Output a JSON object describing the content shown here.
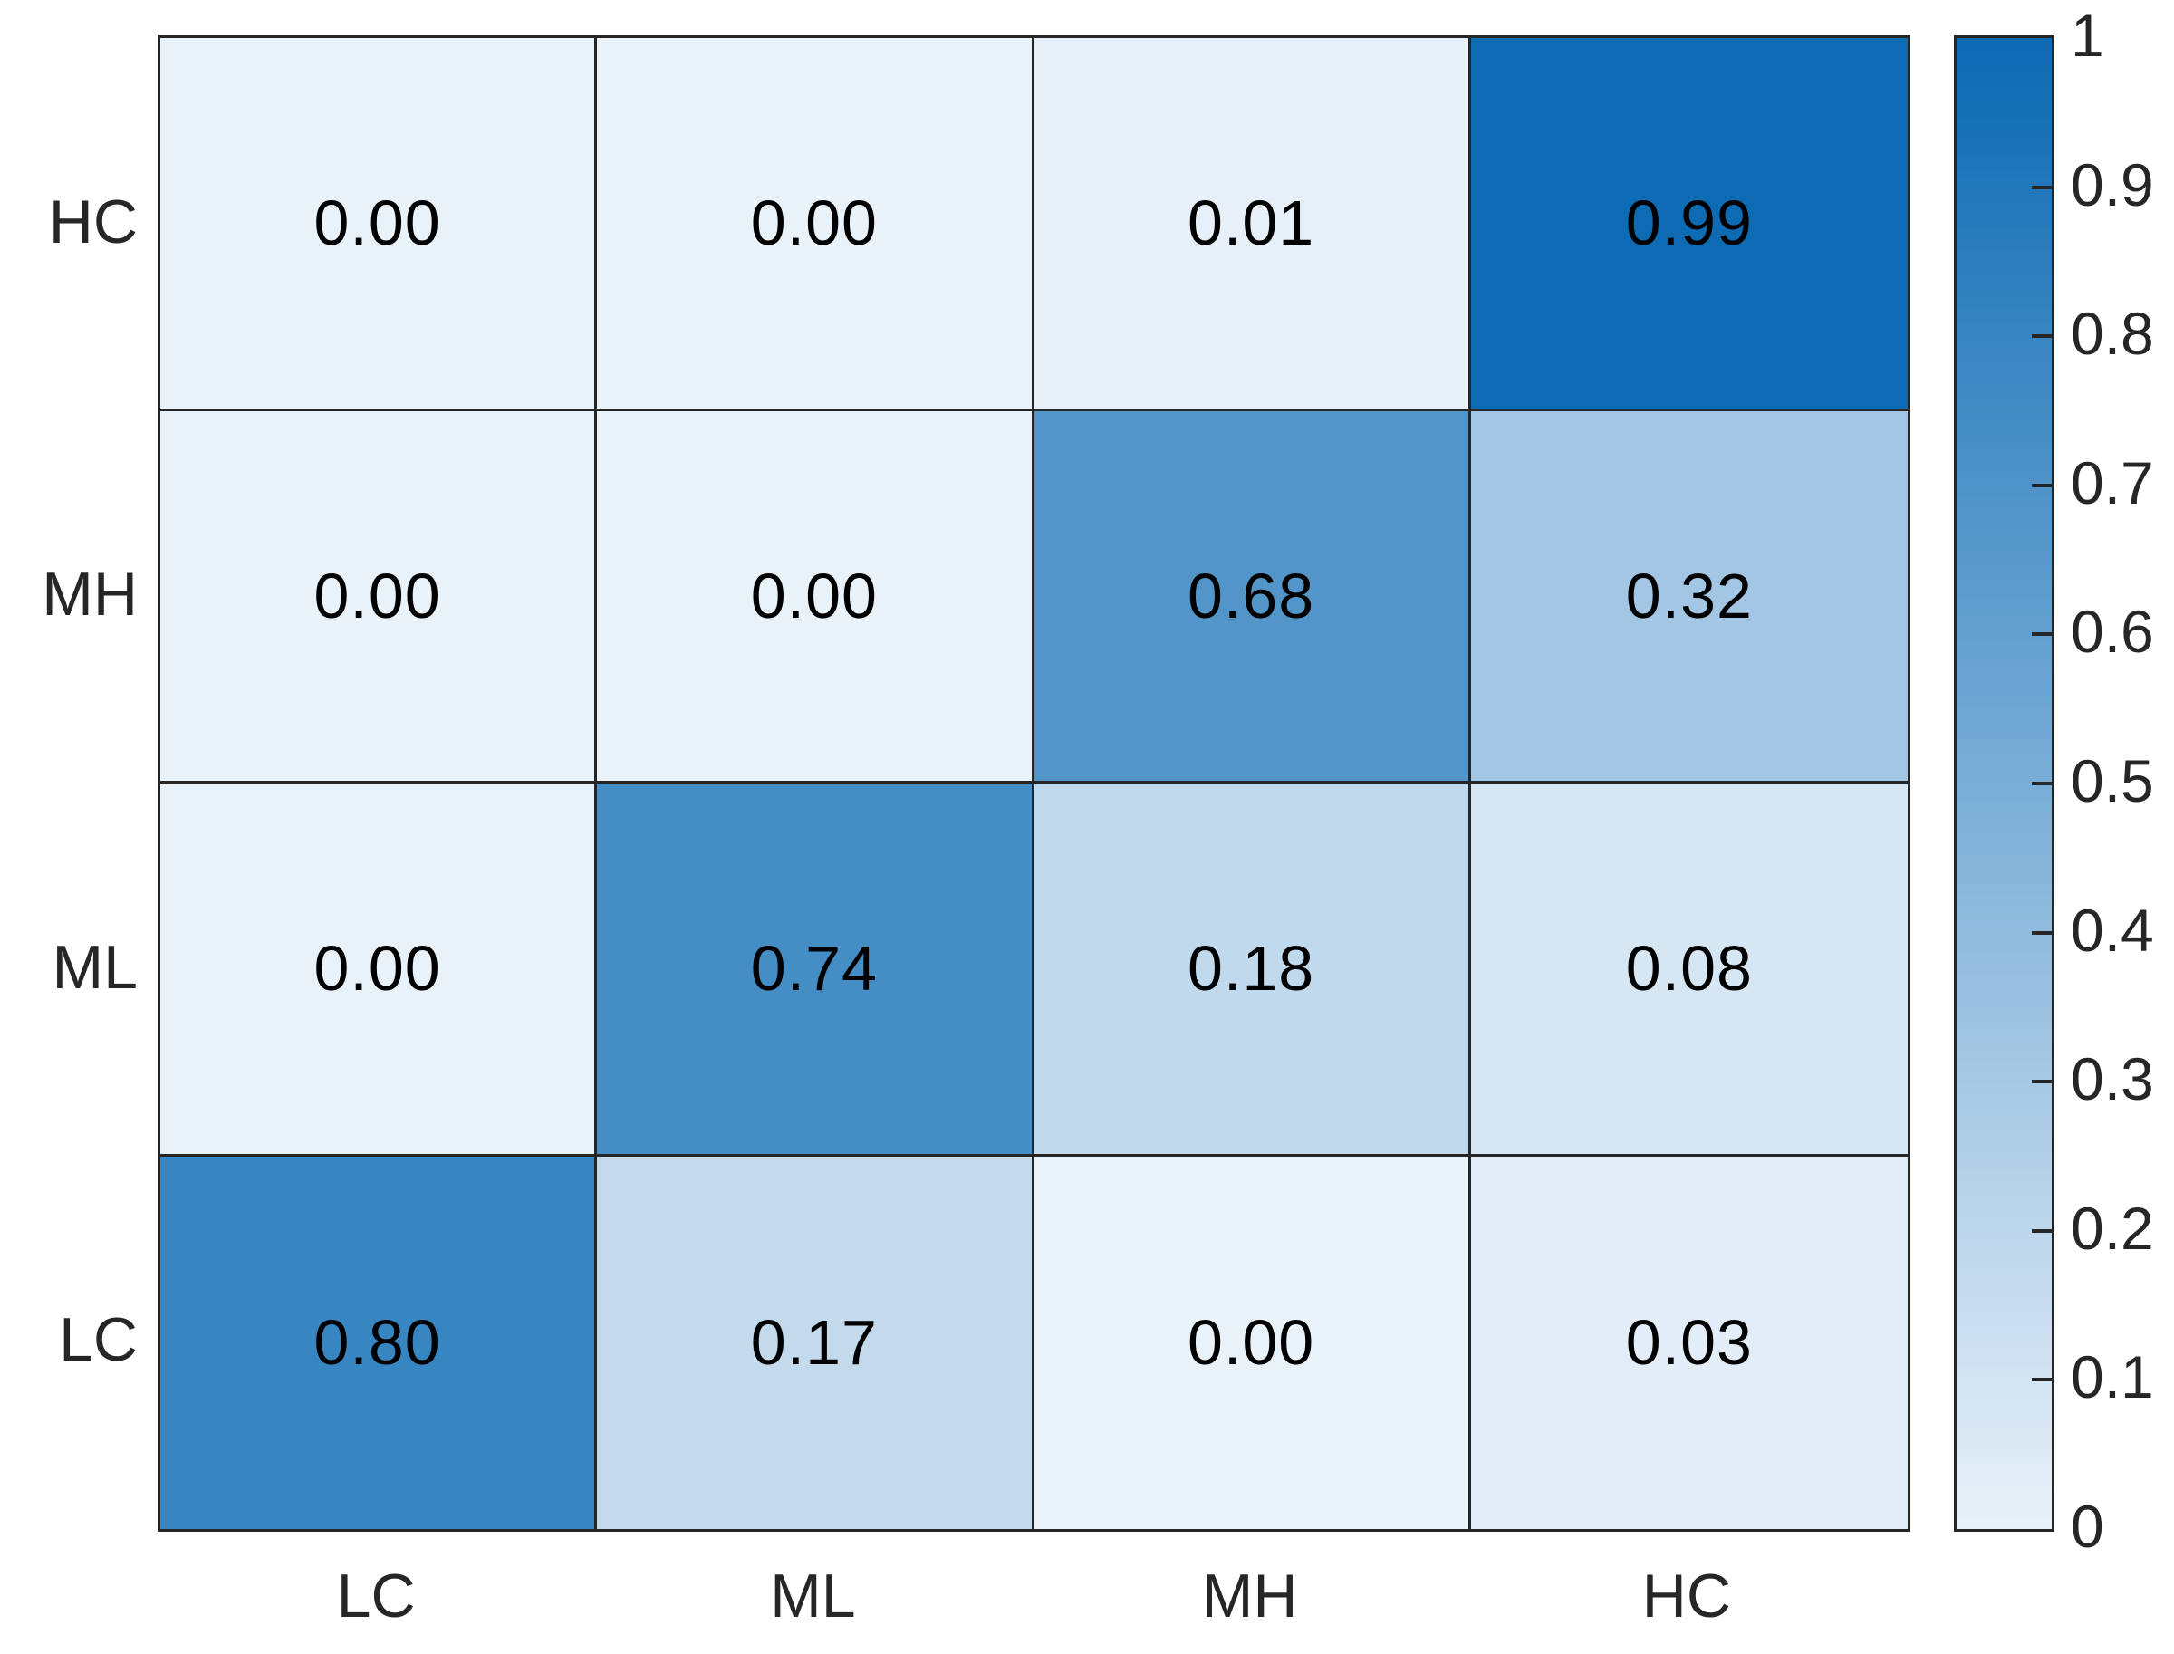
{
  "chart_data": {
    "type": "heatmap",
    "title": "",
    "xlabel": "",
    "ylabel": "",
    "x_labels": [
      "LC",
      "ML",
      "MH",
      "HC"
    ],
    "y_labels": [
      "HC",
      "MH",
      "ML",
      "LC"
    ],
    "series": [
      {
        "name": "HC",
        "values": [
          0.0,
          0.0,
          0.01,
          0.99
        ],
        "labels": [
          "0.00",
          "0.00",
          "0.01",
          "0.99"
        ]
      },
      {
        "name": "MH",
        "values": [
          0.0,
          0.0,
          0.68,
          0.32
        ],
        "labels": [
          "0.00",
          "0.00",
          "0.68",
          "0.32"
        ]
      },
      {
        "name": "ML",
        "values": [
          0.0,
          0.74,
          0.18,
          0.08
        ],
        "labels": [
          "0.00",
          "0.74",
          "0.18",
          "0.08"
        ]
      },
      {
        "name": "LC",
        "values": [
          0.8,
          0.17,
          0.0,
          0.03
        ],
        "labels": [
          "0.80",
          "0.17",
          "0.00",
          "0.03"
        ]
      }
    ],
    "colorbar": {
      "min": 0,
      "max": 1,
      "tick_values": [
        1,
        0.9,
        0.8,
        0.7,
        0.6,
        0.5,
        0.4,
        0.3,
        0.2,
        0.1,
        0
      ],
      "tick_labels": [
        "1",
        "0.9",
        "0.8",
        "0.7",
        "0.6",
        "0.5",
        "0.4",
        "0.3",
        "0.2",
        "0.1",
        "0"
      ],
      "ticks_with_marks": [
        0.9,
        0.8,
        0.7,
        0.6,
        0.5,
        0.4,
        0.3,
        0.2,
        0.1
      ]
    },
    "colormap": {
      "low": "#e9f1f9",
      "high": "#0b6ab3"
    },
    "grid_color": "#262626",
    "axis_text_color": "#262626",
    "cell_text_color": "#000000",
    "grid_on": true,
    "legend_position": "right-colorbar"
  }
}
